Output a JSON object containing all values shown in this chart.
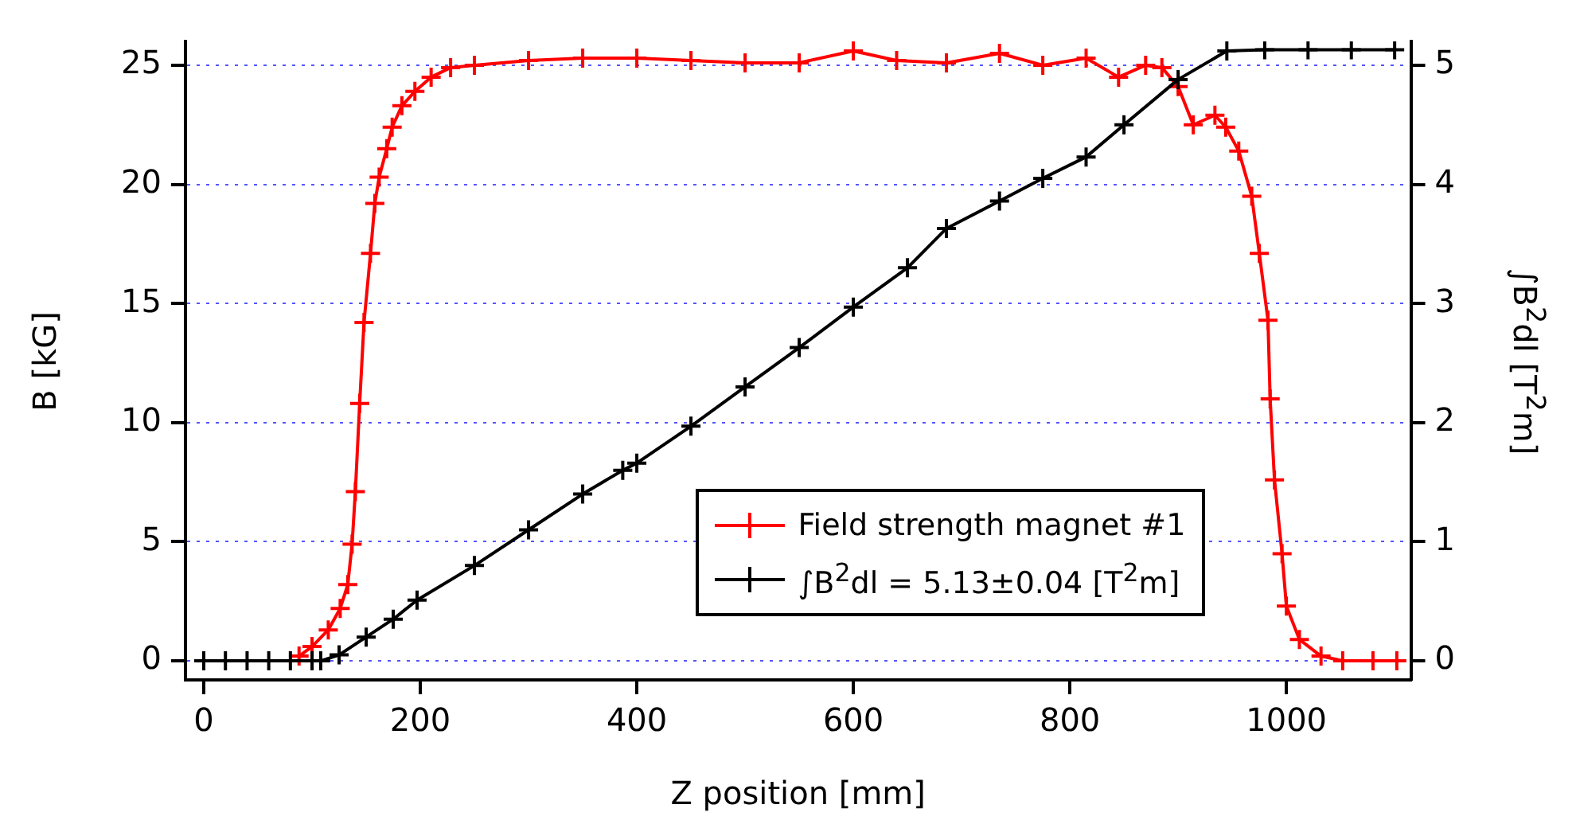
{
  "chart_data": {
    "type": "line",
    "xlabel": "Z position [mm]",
    "ylabel": "B [kG]",
    "y2label": "∫B$^{2}$dl  [T$^{2}$m]",
    "xlim": [
      -17,
      1115
    ],
    "xticks": [
      0,
      200,
      400,
      600,
      800,
      1000
    ],
    "ylim": [
      -0.8,
      26
    ],
    "yticks": [
      0,
      5,
      10,
      15,
      20,
      25
    ],
    "y2lim": [
      -0.16,
      5.2
    ],
    "y2ticks": [
      0,
      1,
      2,
      3,
      4,
      5
    ],
    "grid": "y",
    "legend": "bottom right",
    "marker": "cross",
    "line_style": "solid",
    "series": [
      {
        "name": "Field strength magnet #1",
        "color": "#ff0000",
        "x": [
          88,
          100,
          115,
          126,
          133,
          137,
          140,
          144,
          148,
          154,
          158,
          162,
          169,
          174,
          183,
          195,
          210,
          228,
          250,
          300,
          350,
          400,
          450,
          500,
          550,
          600,
          640,
          686,
          735,
          775,
          815,
          845,
          870,
          885,
          900,
          914,
          934,
          944,
          956,
          968,
          975,
          983,
          985,
          989,
          996,
          1000,
          1012,
          1032,
          1052,
          1080,
          1102
        ],
        "values": [
          0.2,
          0.6,
          1.3,
          2.2,
          3.2,
          4.9,
          7.1,
          10.8,
          14.2,
          17.1,
          19.2,
          20.3,
          21.5,
          22.4,
          23.3,
          23.9,
          24.5,
          24.9,
          25.0,
          25.2,
          25.3,
          25.3,
          25.2,
          25.1,
          25.1,
          25.6,
          25.2,
          25.1,
          25.5,
          25.0,
          25.3,
          24.5,
          25.0,
          24.9,
          24.1,
          22.5,
          22.9,
          22.4,
          21.4,
          19.5,
          17.1,
          14.3,
          11.0,
          7.6,
          4.5,
          2.3,
          0.9,
          0.2,
          0,
          0,
          0
        ]
      },
      {
        "name": "∫B$^{2}$dl = 5.13±0.04 [T$^{2}$m]",
        "color": "#000000",
        "axis": "y2",
        "x": [
          0,
          20,
          40,
          60,
          80,
          100,
          108,
          125,
          150,
          175,
          197,
          250,
          300,
          350,
          387,
          400,
          450,
          500,
          550,
          600,
          650,
          686,
          735,
          775,
          815,
          850,
          900,
          945,
          980,
          1020,
          1060,
          1100
        ],
        "values": [
          0,
          0,
          0,
          0,
          0,
          0,
          0,
          0.05,
          0.2,
          0.35,
          0.51,
          0.8,
          1.1,
          1.4,
          1.6,
          1.66,
          1.97,
          2.3,
          2.63,
          2.97,
          3.3,
          3.63,
          3.86,
          4.05,
          4.23,
          4.5,
          4.88,
          5.12,
          5.13,
          5.13,
          5.13,
          5.13
        ]
      }
    ]
  }
}
